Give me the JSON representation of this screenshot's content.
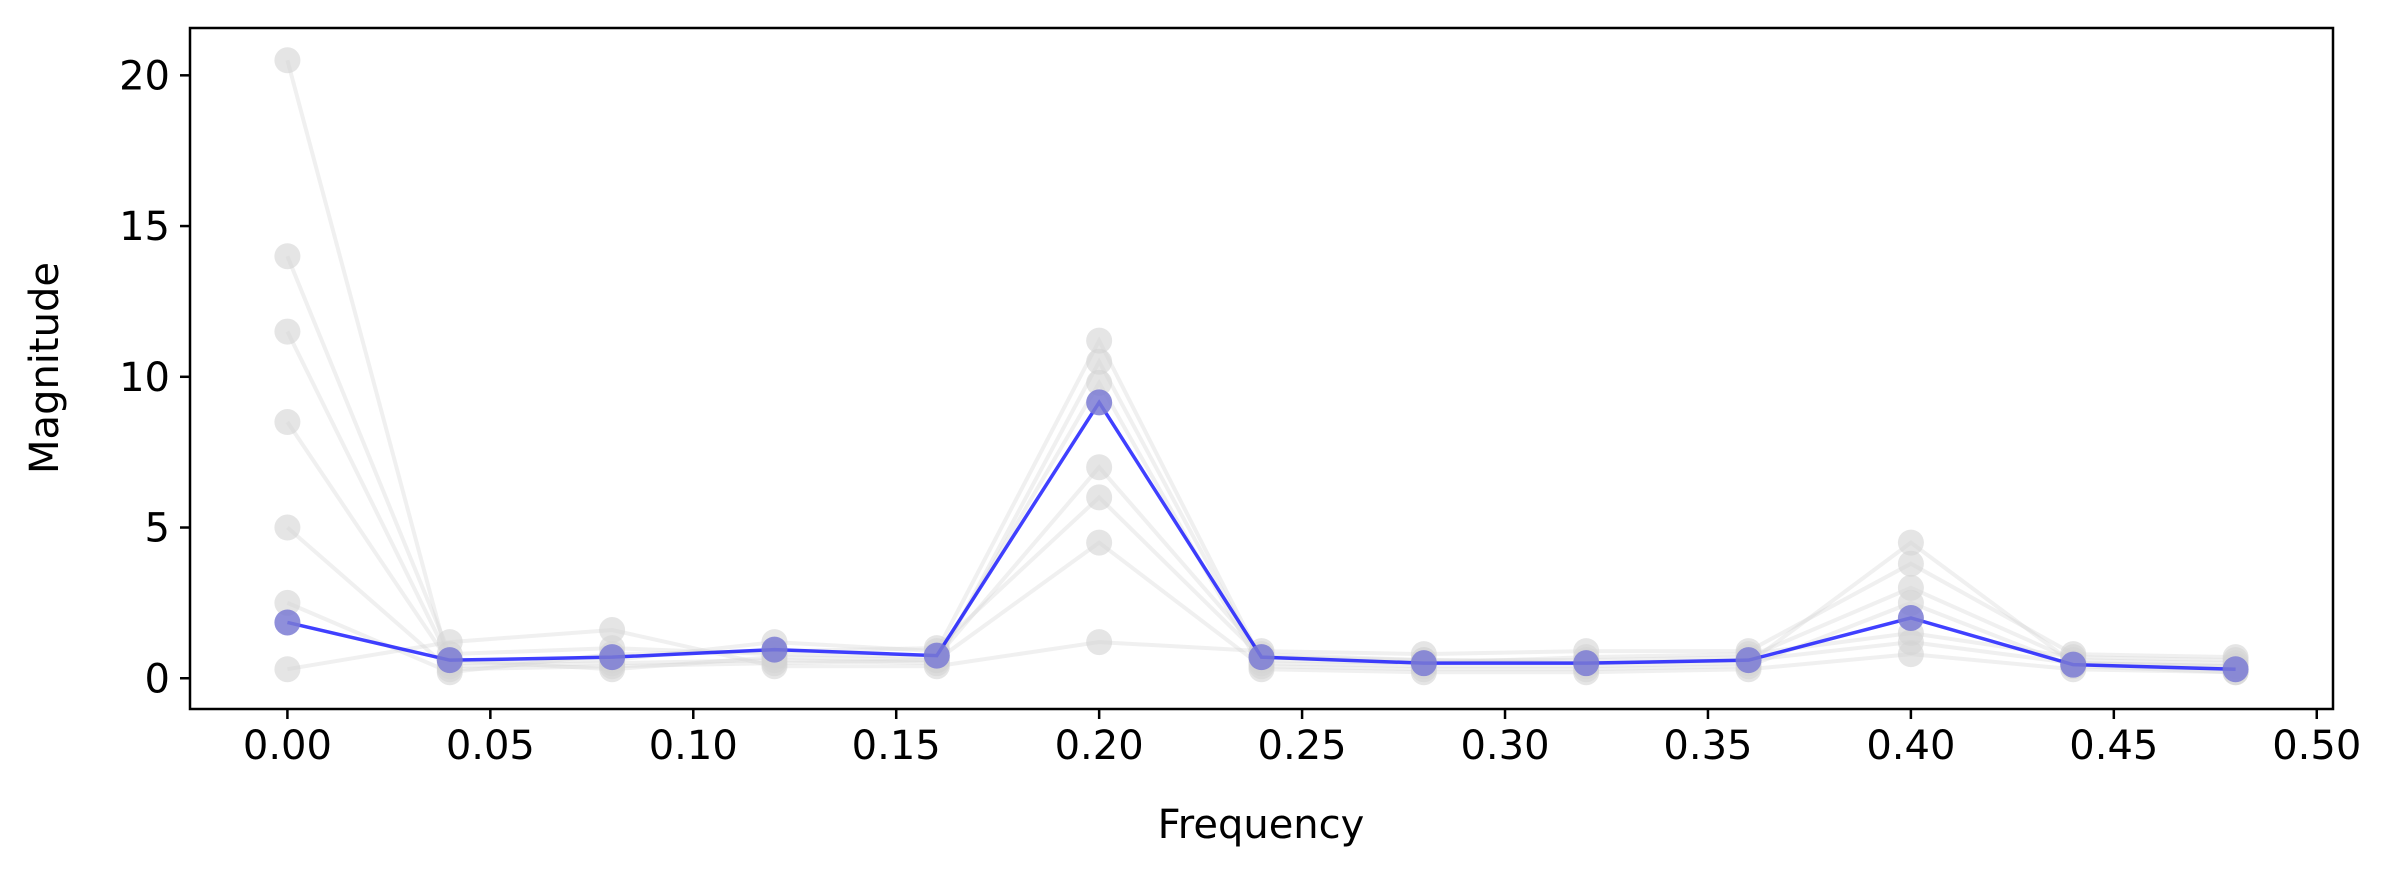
{
  "chart_data": {
    "type": "line",
    "x_label": "Frequency",
    "y_label": "Magnitude",
    "x": [
      0,
      0.04,
      0.08,
      0.12,
      0.16,
      0.2,
      0.24,
      0.28,
      0.32,
      0.36,
      0.4,
      0.44,
      0.48
    ],
    "series": [
      {
        "color": "#d3d3d3",
        "values": [
          20.5,
          0.4,
          0.5,
          0.6,
          0.5,
          10.5,
          0.5,
          0.4,
          0.4,
          0.5,
          4.5,
          0.5,
          0.4
        ]
      },
      {
        "color": "#d3d3d3",
        "values": [
          14.0,
          0.8,
          1.0,
          0.8,
          0.7,
          7.0,
          0.8,
          0.6,
          0.6,
          0.7,
          3.0,
          0.6,
          0.5
        ]
      },
      {
        "color": "#d3d3d3",
        "values": [
          8.5,
          0.5,
          0.6,
          1.2,
          0.9,
          11.2,
          0.6,
          0.5,
          0.7,
          0.8,
          1.5,
          0.7,
          0.6
        ]
      },
      {
        "color": "#d3d3d3",
        "values": [
          5.0,
          0.3,
          0.4,
          0.5,
          0.6,
          4.5,
          0.4,
          0.3,
          0.3,
          0.4,
          2.5,
          0.4,
          0.2
        ]
      },
      {
        "color": "#d3d3d3",
        "values": [
          0.3,
          1.2,
          1.6,
          0.4,
          0.4,
          1.2,
          0.9,
          0.8,
          0.9,
          0.9,
          3.8,
          0.8,
          0.7
        ]
      },
      {
        "color": "#d3d3d3",
        "values": [
          11.5,
          0.6,
          0.3,
          0.7,
          0.6,
          9.8,
          0.3,
          0.2,
          0.2,
          0.3,
          0.8,
          0.3,
          0.2
        ]
      },
      {
        "color": "#d3d3d3",
        "values": [
          2.5,
          0.2,
          0.8,
          0.9,
          1.0,
          6.0,
          0.7,
          0.6,
          0.5,
          0.6,
          1.2,
          0.5,
          0.4
        ]
      },
      {
        "color": "#0000ff",
        "marker_color": "#7b7bd4",
        "values": [
          1.85,
          0.6,
          0.7,
          0.95,
          0.75,
          9.15,
          0.7,
          0.5,
          0.5,
          0.6,
          2.0,
          0.45,
          0.3
        ]
      }
    ],
    "xlim": [
      -0.024,
      0.504
    ],
    "ylim": [
      -1.02,
      21.57
    ],
    "xticks": [
      {
        "value": 0,
        "label": "0.00"
      },
      {
        "value": 0.05,
        "label": "0.05"
      },
      {
        "value": 0.1,
        "label": "0.10"
      },
      {
        "value": 0.15,
        "label": "0.15"
      },
      {
        "value": 0.2,
        "label": "0.20"
      },
      {
        "value": 0.25,
        "label": "0.25"
      },
      {
        "value": 0.3,
        "label": "0.30"
      },
      {
        "value": 0.35,
        "label": "0.35"
      },
      {
        "value": 0.4,
        "label": "0.40"
      },
      {
        "value": 0.45,
        "label": "0.45"
      },
      {
        "value": 0.5,
        "label": "0.50"
      }
    ],
    "yticks": [
      0,
      5,
      10,
      15,
      20
    ],
    "grid": false
  }
}
